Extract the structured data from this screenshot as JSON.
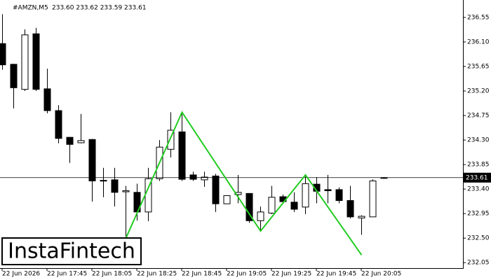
{
  "watermark": "InstaFintech",
  "chart_data": {
    "type": "candlestick",
    "title": "#AMZN,M5",
    "subtitle": "233.60 233.62 233.59 233.61",
    "categories": [
      "22 Jun 2026",
      null,
      null,
      null,
      "22 Jun 17:45",
      null,
      null,
      null,
      "22 Jun 18:05",
      null,
      null,
      null,
      "22 Jun 18:25",
      null,
      null,
      null,
      "22 Jun 18:45",
      null,
      null,
      null,
      "22 Jun 19:05",
      null,
      null,
      null,
      "22 Jun 19:25",
      null,
      null,
      null,
      "22 Jun 19:45",
      null,
      null,
      null,
      "22 Jun 20:05",
      null,
      null
    ],
    "open": [
      236.07,
      235.69,
      235.23,
      236.25,
      235.24,
      234.84,
      234.35,
      234.25,
      234.31,
      233.56,
      233.57,
      233.35,
      233.34,
      232.98,
      233.59,
      234.13,
      234.45,
      233.66,
      233.57,
      233.64,
      233.13,
      233.3,
      233.32,
      232.82,
      232.96,
      233.26,
      233.16,
      233.07,
      233.49,
      233.39,
      233.39,
      233.19,
      232.87,
      232.89,
      233.6
    ],
    "high": [
      236.61,
      235.7,
      236.33,
      236.36,
      235.61,
      234.94,
      234.35,
      234.78,
      234.32,
      233.79,
      233.79,
      233.46,
      233.5,
      233.79,
      234.3,
      234.81,
      234.81,
      233.72,
      233.72,
      233.68,
      233.28,
      233.66,
      233.32,
      233.08,
      233.46,
      233.3,
      233.34,
      233.63,
      233.62,
      233.66,
      233.43,
      233.46,
      232.92,
      233.58,
      233.62
    ],
    "low": [
      235.59,
      234.88,
      235.2,
      235.2,
      234.79,
      234.24,
      233.88,
      234.24,
      233.17,
      233.25,
      233.08,
      232.53,
      232.82,
      232.81,
      233.55,
      233.98,
      233.55,
      233.55,
      233.44,
      232.98,
      233.13,
      233.14,
      232.78,
      232.63,
      232.94,
      233.14,
      232.98,
      232.94,
      233.14,
      233.14,
      233.14,
      232.86,
      232.56,
      232.89,
      233.59
    ],
    "close": [
      235.68,
      235.26,
      236.23,
      235.23,
      234.84,
      234.33,
      234.22,
      234.29,
      233.55,
      233.55,
      233.34,
      233.37,
      232.98,
      233.59,
      234.17,
      234.48,
      233.58,
      233.58,
      233.62,
      233.13,
      233.28,
      233.34,
      232.82,
      232.98,
      233.25,
      233.17,
      233.03,
      233.5,
      233.36,
      233.37,
      233.19,
      232.89,
      232.9,
      233.55,
      233.61
    ],
    "ylim": [
      231.95,
      236.87
    ],
    "yticks": [
      232.05,
      {
        "value": 232.5,
        "label": "232.50"
      },
      232.95,
      {
        "value": 233.4,
        "label": "233.40"
      },
      233.85,
      {
        "value": 234.3,
        "label": "234.30"
      },
      234.75,
      {
        "value": 235.2,
        "label": "235.20"
      },
      235.65,
      {
        "value": 236.1,
        "label": "236.10"
      },
      236.55
    ],
    "last_price": {
      "value": 233.61,
      "label": "233.61"
    },
    "pattern": {
      "color": "#22cc22",
      "x": [
        11,
        16,
        23,
        27,
        32
      ],
      "values": [
        232.5,
        234.81,
        232.63,
        233.66,
        232.19
      ]
    }
  }
}
